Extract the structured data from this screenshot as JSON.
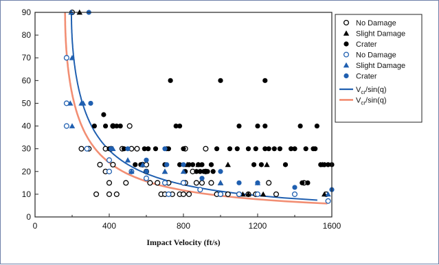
{
  "chart_data": {
    "type": "scatter",
    "xlabel": "Impact Velocity (ft/s)",
    "ylabel": "",
    "xlim": [
      0,
      1600
    ],
    "ylim": [
      0,
      90
    ],
    "xticks": [
      0,
      400,
      800,
      1200,
      1600
    ],
    "yticks": [
      0,
      10,
      20,
      30,
      40,
      50,
      60,
      70,
      80,
      90
    ],
    "grid": false,
    "legend_position": "top-right",
    "series": [
      {
        "name": "No Damage",
        "marker": "open-circle",
        "color": "#000000",
        "points": [
          [
            200,
            90
          ],
          [
            250,
            30
          ],
          [
            290,
            30
          ],
          [
            330,
            10
          ],
          [
            350,
            23
          ],
          [
            380,
            20
          ],
          [
            380,
            30
          ],
          [
            400,
            10
          ],
          [
            400,
            15
          ],
          [
            410,
            30
          ],
          [
            420,
            23
          ],
          [
            420,
            40
          ],
          [
            440,
            10
          ],
          [
            470,
            30
          ],
          [
            490,
            15
          ],
          [
            510,
            40
          ],
          [
            520,
            30
          ],
          [
            550,
            30
          ],
          [
            580,
            23
          ],
          [
            600,
            20
          ],
          [
            600,
            23
          ],
          [
            620,
            15
          ],
          [
            660,
            15
          ],
          [
            680,
            10
          ],
          [
            700,
            10
          ],
          [
            720,
            15
          ],
          [
            740,
            10
          ],
          [
            780,
            10
          ],
          [
            800,
            10
          ],
          [
            800,
            15
          ],
          [
            810,
            15
          ],
          [
            810,
            30
          ],
          [
            830,
            10
          ],
          [
            850,
            20
          ],
          [
            870,
            15
          ],
          [
            900,
            15
          ],
          [
            920,
            20
          ],
          [
            920,
            30
          ],
          [
            950,
            15
          ],
          [
            980,
            10
          ],
          [
            1000,
            10
          ],
          [
            1040,
            10
          ],
          [
            1100,
            10
          ],
          [
            1150,
            10
          ],
          [
            1190,
            10
          ],
          [
            1260,
            15
          ],
          [
            1300,
            10
          ],
          [
            1450,
            15
          ],
          [
            1570,
            10
          ]
        ]
      },
      {
        "name": "Slight Damage",
        "marker": "filled-triangle",
        "color": "#000000",
        "points": [
          [
            240,
            90
          ],
          [
            580,
            23
          ],
          [
            700,
            20
          ],
          [
            820,
            23
          ],
          [
            880,
            23
          ],
          [
            1000,
            15
          ],
          [
            1040,
            23
          ],
          [
            1120,
            10
          ],
          [
            1150,
            10
          ],
          [
            1230,
            10
          ],
          [
            1250,
            23
          ],
          [
            1550,
            23
          ],
          [
            1560,
            10
          ]
        ]
      },
      {
        "name": "Crater",
        "marker": "filled-circle",
        "color": "#000000",
        "points": [
          [
            320,
            40
          ],
          [
            370,
            45
          ],
          [
            380,
            40
          ],
          [
            400,
            30
          ],
          [
            410,
            30
          ],
          [
            420,
            40
          ],
          [
            440,
            40
          ],
          [
            460,
            40
          ],
          [
            480,
            30
          ],
          [
            540,
            23
          ],
          [
            570,
            23
          ],
          [
            590,
            30
          ],
          [
            610,
            30
          ],
          [
            650,
            30
          ],
          [
            700,
            23
          ],
          [
            710,
            30
          ],
          [
            720,
            30
          ],
          [
            730,
            60
          ],
          [
            760,
            40
          ],
          [
            780,
            40
          ],
          [
            780,
            23
          ],
          [
            800,
            30
          ],
          [
            810,
            20
          ],
          [
            830,
            23
          ],
          [
            850,
            23
          ],
          [
            870,
            20
          ],
          [
            880,
            23
          ],
          [
            890,
            20
          ],
          [
            900,
            23
          ],
          [
            910,
            20
          ],
          [
            920,
            20
          ],
          [
            930,
            20
          ],
          [
            950,
            23
          ],
          [
            960,
            20
          ],
          [
            980,
            30
          ],
          [
            1000,
            60
          ],
          [
            1050,
            30
          ],
          [
            1090,
            30
          ],
          [
            1100,
            40
          ],
          [
            1150,
            30
          ],
          [
            1180,
            23
          ],
          [
            1190,
            30
          ],
          [
            1200,
            40
          ],
          [
            1220,
            23
          ],
          [
            1240,
            60
          ],
          [
            1240,
            40
          ],
          [
            1240,
            30
          ],
          [
            1260,
            30
          ],
          [
            1290,
            30
          ],
          [
            1320,
            30
          ],
          [
            1350,
            23
          ],
          [
            1380,
            30
          ],
          [
            1400,
            30
          ],
          [
            1430,
            40
          ],
          [
            1440,
            15
          ],
          [
            1460,
            30
          ],
          [
            1470,
            15
          ],
          [
            1500,
            30
          ],
          [
            1510,
            30
          ],
          [
            1520,
            40
          ],
          [
            1540,
            23
          ],
          [
            1560,
            23
          ],
          [
            1580,
            23
          ],
          [
            1600,
            23
          ]
        ]
      },
      {
        "name": "No Damage",
        "marker": "open-circle",
        "color": "#1f5fb0",
        "points": [
          [
            170,
            70
          ],
          [
            170,
            50
          ],
          [
            170,
            40
          ],
          [
            280,
            30
          ],
          [
            400,
            20
          ],
          [
            400,
            25
          ],
          [
            520,
            20
          ],
          [
            600,
            17
          ],
          [
            700,
            15
          ],
          [
            720,
            10
          ],
          [
            800,
            15
          ],
          [
            890,
            12
          ],
          [
            1000,
            10
          ],
          [
            1100,
            10
          ],
          [
            1200,
            10
          ],
          [
            1400,
            10
          ],
          [
            1580,
            7
          ]
        ]
      },
      {
        "name": "Slight Damage",
        "marker": "filled-triangle",
        "color": "#1f5fb0",
        "points": [
          [
            195,
            90
          ],
          [
            200,
            70
          ],
          [
            190,
            50
          ],
          [
            200,
            40
          ],
          [
            250,
            50
          ],
          [
            260,
            50
          ],
          [
            420,
            30
          ],
          [
            500,
            25
          ],
          [
            520,
            20
          ],
          [
            580,
            23
          ],
          [
            700,
            20
          ],
          [
            800,
            20
          ],
          [
            1000,
            15
          ],
          [
            1200,
            15
          ],
          [
            1580,
            10
          ]
        ]
      },
      {
        "name": "Crater",
        "marker": "filled-circle",
        "color": "#1f5fb0",
        "points": [
          [
            290,
            90
          ],
          [
            300,
            50
          ],
          [
            410,
            30
          ],
          [
            500,
            30
          ],
          [
            600,
            25
          ],
          [
            600,
            20
          ],
          [
            700,
            30
          ],
          [
            710,
            23
          ],
          [
            800,
            23
          ],
          [
            900,
            17
          ],
          [
            1000,
            20
          ],
          [
            1100,
            15
          ],
          [
            1200,
            15
          ],
          [
            1400,
            13
          ],
          [
            1600,
            12
          ]
        ]
      }
    ],
    "curves": [
      {
        "name": "Vcr/sin(q)",
        "legend_main": "V",
        "legend_sub": "cr",
        "legend_tail": "/sin(q)",
        "color": "#1f5fb0",
        "vcr": 196
      },
      {
        "name": "Vcr/sin(q)",
        "legend_main": "V",
        "legend_sub": "cr",
        "legend_tail": "/sin(q)",
        "color": "#f07a5a",
        "vcr": 162
      }
    ]
  }
}
